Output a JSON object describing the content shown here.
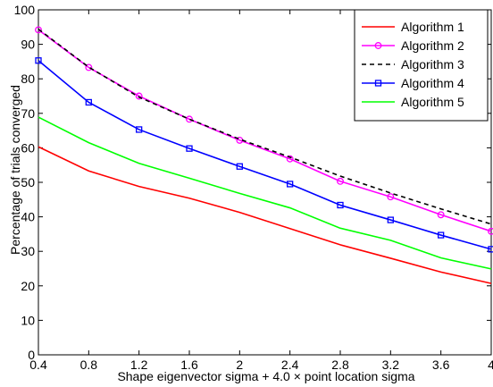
{
  "chart_data": {
    "type": "line",
    "title": "",
    "xlabel": "Shape eigenvector sigma + 4.0 × point location sigma",
    "ylabel": "Percentage of trials converged",
    "xlim": [
      0.4,
      4
    ],
    "ylim": [
      0,
      100
    ],
    "x_ticks": [
      "0.4",
      "0.8",
      "1.2",
      "1.6",
      "2",
      "2.4",
      "2.8",
      "3.2",
      "3.6",
      "4"
    ],
    "y_ticks": [
      "0",
      "10",
      "20",
      "30",
      "40",
      "50",
      "60",
      "70",
      "80",
      "90",
      "100"
    ],
    "grid": false,
    "legend_position": "top-right",
    "x": [
      0.4,
      0.8,
      1.2,
      1.6,
      2.0,
      2.4,
      2.8,
      3.2,
      3.6,
      4.0
    ],
    "series": [
      {
        "name": "Algorithm 1",
        "color": "#ff0000",
        "style": "solid",
        "marker": "none",
        "values": [
          60.3,
          53.3,
          48.8,
          45.4,
          41.3,
          36.6,
          31.9,
          28.0,
          24.0,
          20.7
        ]
      },
      {
        "name": "Algorithm 2",
        "color": "#ff00ff",
        "style": "solid",
        "marker": "circle",
        "values": [
          94.2,
          83.3,
          75.0,
          68.3,
          62.2,
          56.8,
          50.3,
          45.8,
          40.6,
          35.8
        ]
      },
      {
        "name": "Algorithm 3",
        "color": "#000000",
        "style": "dashed",
        "marker": "none",
        "values": [
          94.4,
          83.4,
          74.7,
          68.3,
          62.5,
          57.3,
          51.8,
          46.9,
          42.3,
          37.9
        ]
      },
      {
        "name": "Algorithm 4",
        "color": "#0000ff",
        "style": "solid",
        "marker": "square",
        "values": [
          85.3,
          73.2,
          65.3,
          59.8,
          54.6,
          49.5,
          43.4,
          39.1,
          34.7,
          30.6
        ]
      },
      {
        "name": "Algorithm 5",
        "color": "#00ff00",
        "style": "solid",
        "marker": "none",
        "values": [
          68.9,
          61.5,
          55.5,
          51.2,
          46.8,
          42.6,
          36.7,
          33.2,
          28.1,
          24.9
        ]
      }
    ]
  }
}
